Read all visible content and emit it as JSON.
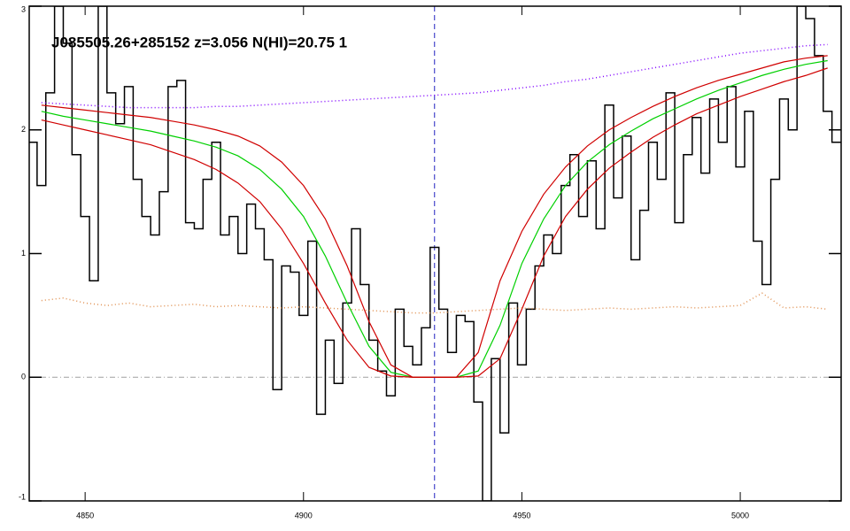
{
  "chart_data": {
    "type": "line",
    "title": "J085505.26+285152 z=3.056 N(HI)=20.75 1",
    "xlim": [
      4837.2,
      5023.1
    ],
    "ylim": [
      -1,
      3
    ],
    "xticks": [
      4850,
      4900,
      4950,
      5000
    ],
    "yticks": [
      -1,
      0,
      1,
      2,
      3
    ],
    "vline": 4930,
    "vline_color": "#2020c0",
    "hline": 0,
    "hline_color": "#a0a0a0",
    "series": [
      {
        "color": "#000000",
        "style": "step",
        "x": [
          4838,
          4840,
          4842,
          4844,
          4846,
          4848,
          4850,
          4852,
          4854,
          4856,
          4858,
          4860,
          4862,
          4864,
          4866,
          4868,
          4870,
          4872,
          4874,
          4876,
          4878,
          4880,
          4882,
          4884,
          4886,
          4888,
          4890,
          4892,
          4894,
          4896,
          4898,
          4900,
          4902,
          4904,
          4906,
          4908,
          4910,
          4912,
          4914,
          4916,
          4918,
          4920,
          4922,
          4924,
          4926,
          4928,
          4930,
          4932,
          4934,
          4936,
          4938,
          4940,
          4942,
          4944,
          4946,
          4948,
          4950,
          4952,
          4954,
          4956,
          4958,
          4960,
          4962,
          4964,
          4966,
          4968,
          4970,
          4972,
          4974,
          4976,
          4978,
          4980,
          4982,
          4984,
          4986,
          4988,
          4990,
          4992,
          4994,
          4996,
          4998,
          5000,
          5002,
          5004,
          5006,
          5008,
          5010,
          5012,
          5014,
          5016,
          5018,
          5020,
          5022
        ],
        "values": [
          1.9,
          1.55,
          2.3,
          3.0,
          2.7,
          1.8,
          1.3,
          0.78,
          3.0,
          2.3,
          2.05,
          2.35,
          1.6,
          1.3,
          1.15,
          1.5,
          2.35,
          2.4,
          1.25,
          1.2,
          1.6,
          1.9,
          1.15,
          1.3,
          1.0,
          1.4,
          1.2,
          0.95,
          -0.1,
          0.9,
          0.85,
          0.5,
          1.1,
          -0.3,
          0.3,
          -0.05,
          0.6,
          1.2,
          0.75,
          0.3,
          0.05,
          -0.15,
          0.55,
          0.25,
          0.1,
          0.4,
          1.05,
          0.55,
          0.2,
          0.5,
          0.45,
          -0.2,
          -1.0,
          0.15,
          -0.45,
          0.6,
          0.1,
          0.55,
          0.9,
          1.15,
          1.0,
          1.55,
          1.8,
          1.3,
          1.75,
          1.2,
          2.2,
          1.45,
          1.95,
          0.95,
          1.35,
          1.9,
          1.6,
          2.3,
          1.25,
          1.8,
          2.1,
          1.65,
          2.25,
          1.9,
          2.35,
          1.7,
          2.15,
          1.1,
          0.75,
          1.6,
          2.25,
          2.0,
          3.0,
          2.9,
          2.6,
          2.15,
          1.9
        ]
      },
      {
        "color": "#00d000",
        "style": "solid",
        "x": [
          4840,
          4845,
          4850,
          4855,
          4860,
          4865,
          4870,
          4875,
          4880,
          4885,
          4890,
          4895,
          4900,
          4905,
          4910,
          4915,
          4920,
          4925,
          4930,
          4935,
          4940,
          4945,
          4950,
          4955,
          4960,
          4965,
          4970,
          4975,
          4980,
          4985,
          4990,
          4995,
          5000,
          5005,
          5010,
          5015,
          5020
        ],
        "values": [
          2.15,
          2.11,
          2.08,
          2.05,
          2.02,
          1.99,
          1.95,
          1.91,
          1.86,
          1.79,
          1.68,
          1.52,
          1.3,
          0.98,
          0.6,
          0.25,
          0.04,
          0,
          0,
          0,
          0.05,
          0.42,
          0.92,
          1.28,
          1.55,
          1.74,
          1.88,
          1.99,
          2.09,
          2.17,
          2.25,
          2.32,
          2.38,
          2.44,
          2.49,
          2.53,
          2.56
        ]
      },
      {
        "color": "#d00000",
        "style": "solid",
        "x": [
          4840,
          4845,
          4850,
          4855,
          4860,
          4865,
          4870,
          4875,
          4880,
          4885,
          4890,
          4895,
          4900,
          4905,
          4910,
          4915,
          4920,
          4925,
          4930,
          4935,
          4940,
          4945,
          4950,
          4955,
          4960,
          4965,
          4970,
          4975,
          4980,
          4985,
          4990,
          4995,
          5000,
          5005,
          5010,
          5015,
          5020
        ],
        "values": [
          2.2,
          2.18,
          2.16,
          2.14,
          2.12,
          2.1,
          2.07,
          2.04,
          2.0,
          1.95,
          1.87,
          1.74,
          1.55,
          1.28,
          0.9,
          0.45,
          0.1,
          0,
          0,
          0,
          0.2,
          0.78,
          1.18,
          1.48,
          1.7,
          1.87,
          2.0,
          2.1,
          2.19,
          2.27,
          2.34,
          2.4,
          2.45,
          2.5,
          2.55,
          2.58,
          2.6
        ]
      },
      {
        "color": "#d00000",
        "style": "solid",
        "x": [
          4840,
          4845,
          4850,
          4855,
          4860,
          4865,
          4870,
          4875,
          4880,
          4885,
          4890,
          4895,
          4900,
          4905,
          4910,
          4915,
          4920,
          4925,
          4930,
          4935,
          4940,
          4945,
          4950,
          4955,
          4960,
          4965,
          4970,
          4975,
          4980,
          4985,
          4990,
          4995,
          5000,
          5005,
          5010,
          5015,
          5020
        ],
        "values": [
          2.08,
          2.04,
          2.0,
          1.96,
          1.92,
          1.88,
          1.82,
          1.76,
          1.68,
          1.57,
          1.42,
          1.2,
          0.92,
          0.6,
          0.3,
          0.08,
          0.01,
          0,
          0,
          0,
          0.01,
          0.15,
          0.55,
          0.98,
          1.3,
          1.52,
          1.69,
          1.82,
          1.94,
          2.04,
          2.13,
          2.2,
          2.27,
          2.33,
          2.39,
          2.44,
          2.5
        ]
      },
      {
        "color": "#8000ff",
        "style": "dotted",
        "x": [
          4840,
          4845,
          4850,
          4855,
          4860,
          4865,
          4870,
          4875,
          4880,
          4885,
          4890,
          4895,
          4900,
          4905,
          4910,
          4915,
          4920,
          4925,
          4930,
          4935,
          4940,
          4945,
          4950,
          4955,
          4960,
          4965,
          4970,
          4975,
          4980,
          4985,
          4990,
          4995,
          5000,
          5005,
          5010,
          5015,
          5020
        ],
        "values": [
          2.22,
          2.21,
          2.2,
          2.19,
          2.18,
          2.18,
          2.18,
          2.18,
          2.19,
          2.19,
          2.2,
          2.21,
          2.22,
          2.23,
          2.24,
          2.25,
          2.26,
          2.27,
          2.28,
          2.29,
          2.3,
          2.32,
          2.34,
          2.36,
          2.39,
          2.41,
          2.44,
          2.47,
          2.5,
          2.53,
          2.56,
          2.59,
          2.62,
          2.64,
          2.66,
          2.68,
          2.69
        ]
      },
      {
        "color": "#e09050",
        "style": "dotted",
        "x": [
          4840,
          4845,
          4850,
          4855,
          4860,
          4865,
          4870,
          4875,
          4880,
          4885,
          4890,
          4895,
          4900,
          4905,
          4910,
          4915,
          4920,
          4925,
          4930,
          4935,
          4940,
          4945,
          4950,
          4955,
          4960,
          4965,
          4970,
          4975,
          4980,
          4985,
          4990,
          4995,
          5000,
          5005,
          5010,
          5015,
          5020
        ],
        "values": [
          0.62,
          0.64,
          0.6,
          0.58,
          0.6,
          0.57,
          0.58,
          0.59,
          0.57,
          0.58,
          0.57,
          0.56,
          0.57,
          0.56,
          0.55,
          0.54,
          0.53,
          0.52,
          0.52,
          0.53,
          0.54,
          0.55,
          0.56,
          0.55,
          0.54,
          0.55,
          0.56,
          0.55,
          0.56,
          0.57,
          0.56,
          0.57,
          0.58,
          0.68,
          0.56,
          0.57,
          0.55
        ]
      }
    ]
  }
}
